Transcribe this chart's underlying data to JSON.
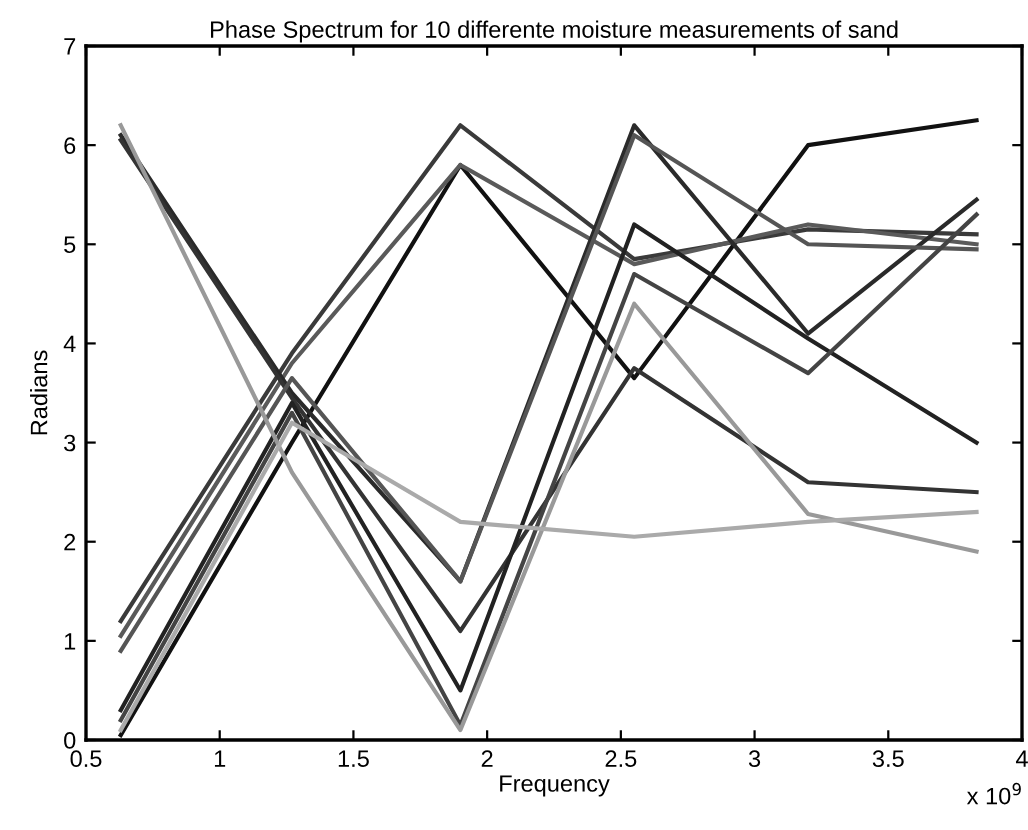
{
  "chart_data": {
    "type": "line",
    "title": "Phase Spectrum for 10 differente moisture measurements of sand",
    "xlabel": "Frequency",
    "ylabel": "Radians",
    "annotations": [
      "x 10$^{9}$"
    ],
    "x": [
      0.63,
      1.27,
      1.9,
      2.55,
      3.2,
      3.83
    ],
    "series": [
      {
        "color": "#111111",
        "values": [
          0.05,
          3.0,
          5.8,
          3.65,
          6.0,
          6.25
        ]
      },
      {
        "color": "#3a3a3a",
        "values": [
          1.2,
          3.9,
          6.2,
          4.85,
          5.15,
          5.1
        ]
      },
      {
        "color": "#5a5a5a",
        "values": [
          1.05,
          3.8,
          5.8,
          4.8,
          5.2,
          5.0
        ]
      },
      {
        "color": "#2a2a2a",
        "values": [
          6.1,
          3.5,
          1.6,
          6.2,
          4.1,
          5.45
        ]
      },
      {
        "color": "#333333",
        "values": [
          6.05,
          3.45,
          1.1,
          3.75,
          2.6,
          2.5
        ]
      },
      {
        "color": "#555555",
        "values": [
          0.9,
          3.65,
          1.6,
          6.1,
          5.0,
          4.95
        ]
      },
      {
        "color": "#222222",
        "values": [
          0.3,
          3.4,
          0.5,
          5.2,
          4.05,
          3.0
        ]
      },
      {
        "color": "#444444",
        "values": [
          0.2,
          3.3,
          0.15,
          4.7,
          3.7,
          5.3
        ]
      },
      {
        "color": "#999999",
        "values": [
          6.2,
          2.7,
          0.1,
          4.4,
          2.28,
          1.9
        ]
      },
      {
        "color": "#aaaaaa",
        "values": [
          0.1,
          3.2,
          2.2,
          2.05,
          2.2,
          2.3
        ]
      }
    ],
    "xlim": [
      0.5,
      4
    ],
    "ylim": [
      0,
      7
    ],
    "xticks": [
      0.5,
      1,
      1.5,
      2,
      2.5,
      3,
      3.5,
      4
    ],
    "yticks": [
      0,
      1,
      2,
      3,
      4,
      5,
      6,
      7
    ],
    "grid": false,
    "legend": false,
    "marker": "none",
    "line_style": "solid"
  }
}
